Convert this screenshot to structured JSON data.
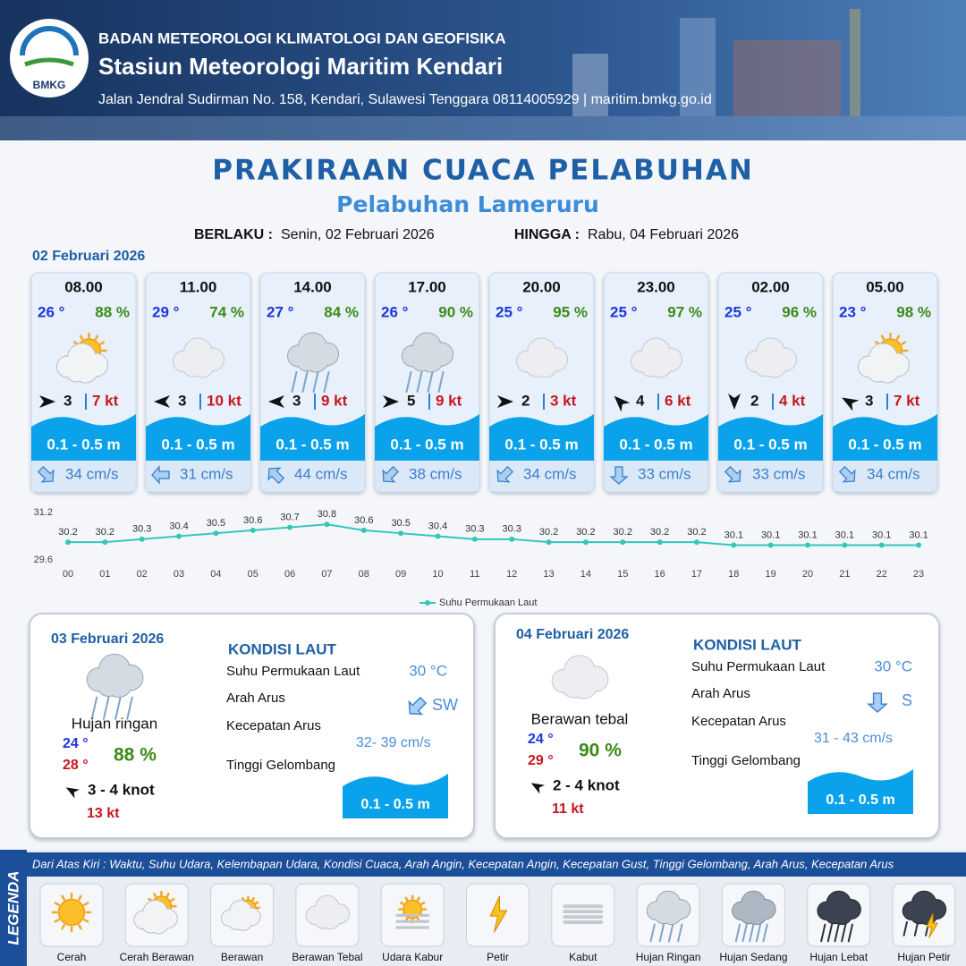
{
  "header": {
    "agency": "BADAN METEOROLOGI KLIMATOLOGI DAN GEOFISIKA",
    "station": "Stasiun Meteorologi Maritim Kendari",
    "address": "Jalan Jendral Sudirman No. 158, Kendari, Sulawesi Tenggara  08114005929 | maritim.bmkg.go.id",
    "logo_text": "BMKG"
  },
  "title": "PRAKIRAAN CUACA PELABUHAN",
  "subtitle": "Pelabuhan Lameruru",
  "validity": {
    "from_label": "BERLAKU :",
    "from": "Senin, 02 Februari 2026",
    "to_label": "HINGGA :",
    "to": "Rabu, 04 Februari 2026"
  },
  "today": {
    "date": "02 Februari 2026",
    "hours": [
      {
        "time": "08.00",
        "temp": "26 °",
        "humidity": "88 %",
        "wind": "3",
        "gust": "7 kt",
        "wave": "0.1 - 0.5 m",
        "current": "34 cm/s"
      },
      {
        "time": "11.00",
        "temp": "29 °",
        "humidity": "74 %",
        "wind": "3",
        "gust": "10 kt",
        "wave": "0.1 - 0.5 m",
        "current": "31 cm/s"
      },
      {
        "time": "14.00",
        "temp": "27 °",
        "humidity": "84 %",
        "wind": "3",
        "gust": "9 kt",
        "wave": "0.1 - 0.5 m",
        "current": "44 cm/s"
      },
      {
        "time": "17.00",
        "temp": "26 °",
        "humidity": "90 %",
        "wind": "5",
        "gust": "9 kt",
        "wave": "0.1 - 0.5 m",
        "current": "38 cm/s"
      },
      {
        "time": "20.00",
        "temp": "25 °",
        "humidity": "95 %",
        "wind": "2",
        "gust": "3 kt",
        "wave": "0.1 - 0.5 m",
        "current": "34 cm/s"
      },
      {
        "time": "23.00",
        "temp": "25 °",
        "humidity": "97 %",
        "wind": "4",
        "gust": "6 kt",
        "wave": "0.1 - 0.5 m",
        "current": "33 cm/s"
      },
      {
        "time": "02.00",
        "temp": "25 °",
        "humidity": "96 %",
        "wind": "2",
        "gust": "4 kt",
        "wave": "0.1 - 0.5 m",
        "current": "33 cm/s"
      },
      {
        "time": "05.00",
        "temp": "23 °",
        "humidity": "98 %",
        "wind": "3",
        "gust": "7 kt",
        "wave": "0.1 - 0.5 m",
        "current": "34 cm/s"
      }
    ]
  },
  "chart_data": {
    "type": "line",
    "categories": [
      "00",
      "01",
      "02",
      "03",
      "04",
      "05",
      "06",
      "07",
      "08",
      "09",
      "10",
      "11",
      "12",
      "13",
      "14",
      "15",
      "16",
      "17",
      "18",
      "19",
      "20",
      "21",
      "22",
      "23"
    ],
    "series": [
      {
        "name": "Suhu Permukaan Laut",
        "color": "#33c6bb",
        "values": [
          30.2,
          30.2,
          30.3,
          30.4,
          30.5,
          30.6,
          30.7,
          30.8,
          30.6,
          30.5,
          30.4,
          30.3,
          30.3,
          30.2,
          30.2,
          30.2,
          30.2,
          30.2,
          30.1,
          30.1,
          30.1,
          30.1,
          30.1,
          30.1
        ]
      }
    ],
    "ylim": [
      29.6,
      31.2
    ],
    "yticks": [
      29.6,
      31.2
    ],
    "legend": "bottom",
    "grid": false
  },
  "days": [
    {
      "date": "03 Februari 2026",
      "condition": "Hujan ringan",
      "temp_min": "24 °",
      "temp_max": "28 °",
      "humidity": "88 %",
      "wind": "3  - 4 knot",
      "gust": "13 kt",
      "sea": {
        "title": "KONDISI LAUT",
        "rows": [
          {
            "label": "Suhu Permukaan Laut",
            "value": "30 °C"
          },
          {
            "label": "Arah Arus",
            "value": "SW"
          },
          {
            "label": "Kecepatan Arus",
            "value": "32- 39 cm/s"
          },
          {
            "label": "Tinggi Gelombang",
            "value": "0.1 - 0.5 m"
          }
        ]
      }
    },
    {
      "date": "04 Februari 2026",
      "condition": "Berawan tebal",
      "temp_min": "24 °",
      "temp_max": "29 °",
      "humidity": "90 %",
      "wind": "2 - 4 knot",
      "gust": "11 kt",
      "sea": {
        "title": "KONDISI LAUT",
        "rows": [
          {
            "label": "Suhu Permukaan Laut",
            "value": "30 °C"
          },
          {
            "label": "Arah Arus",
            "value": "S"
          },
          {
            "label": "Kecepatan Arus",
            "value": "31 - 43 cm/s"
          },
          {
            "label": "Tinggi Gelombang",
            "value": "0.1 - 0.5 m"
          }
        ]
      }
    }
  ],
  "legend": {
    "title": "LEGENDA",
    "description": "Dari Atas Kiri : Waktu, Suhu Udara, Kelembapan Udara, Kondisi Cuaca, Arah Angin, Kecepatan Angin, Kecepatan Gust, Tinggi Gelombang, Arah Arus, Kecepatan Arus",
    "items": [
      "Cerah",
      "Cerah Berawan",
      "Berawan",
      "Berawan Tebal",
      "Udara Kabur",
      "Petir",
      "Kabut",
      "Hujan Ringan",
      "Hujan Sedang",
      "Hujan Lebat",
      "Hujan Petir"
    ]
  }
}
